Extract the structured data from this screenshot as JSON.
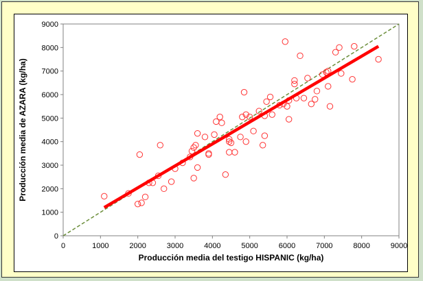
{
  "chart_data": {
    "type": "scatter",
    "xlabel": "Producción media del testigo HISPANIC (kg/ha)",
    "ylabel": "Producción media de AZARA (kg/ha)",
    "xlim": [
      0,
      9000
    ],
    "ylim": [
      0,
      9000
    ],
    "x_ticks": [
      "0",
      "1000",
      "2000",
      "3000",
      "4000",
      "5000",
      "6000",
      "7000",
      "8000",
      "9000"
    ],
    "y_ticks": [
      "0",
      "1000",
      "2000",
      "3000",
      "4000",
      "5000",
      "6000",
      "7000",
      "8000",
      "9000"
    ],
    "grid": false,
    "legend": "none",
    "colors": {
      "points": "#ff3333",
      "regression": "#ff0000",
      "identity": "#6b8e3a"
    },
    "points": [
      [
        1100,
        1680
      ],
      [
        1750,
        1800
      ],
      [
        2000,
        1350
      ],
      [
        2100,
        1400
      ],
      [
        2200,
        1650
      ],
      [
        2050,
        3450
      ],
      [
        2300,
        2250
      ],
      [
        2400,
        2250
      ],
      [
        2550,
        2550
      ],
      [
        2600,
        3850
      ],
      [
        2700,
        2000
      ],
      [
        2900,
        2300
      ],
      [
        3000,
        2850
      ],
      [
        3200,
        3100
      ],
      [
        3400,
        3350
      ],
      [
        3450,
        3600
      ],
      [
        3500,
        2450
      ],
      [
        3500,
        3750
      ],
      [
        3550,
        3850
      ],
      [
        3600,
        2900
      ],
      [
        3600,
        4350
      ],
      [
        3800,
        4200
      ],
      [
        3900,
        3450
      ],
      [
        3900,
        3500
      ],
      [
        4050,
        4300
      ],
      [
        4100,
        4850
      ],
      [
        4200,
        5050
      ],
      [
        4250,
        4800
      ],
      [
        4350,
        2600
      ],
      [
        4450,
        3550
      ],
      [
        4450,
        4000
      ],
      [
        4450,
        4100
      ],
      [
        4500,
        3950
      ],
      [
        4600,
        3550
      ],
      [
        4750,
        4200
      ],
      [
        4800,
        5050
      ],
      [
        4850,
        6100
      ],
      [
        4900,
        4000
      ],
      [
        4900,
        5150
      ],
      [
        5000,
        5050
      ],
      [
        5100,
        4450
      ],
      [
        5250,
        5300
      ],
      [
        5350,
        3850
      ],
      [
        5400,
        4250
      ],
      [
        5400,
        5100
      ],
      [
        5450,
        5700
      ],
      [
        5550,
        5900
      ],
      [
        5600,
        5150
      ],
      [
        5800,
        5550
      ],
      [
        5900,
        5600
      ],
      [
        5950,
        8250
      ],
      [
        6000,
        5500
      ],
      [
        6050,
        4950
      ],
      [
        6050,
        5750
      ],
      [
        6200,
        6450
      ],
      [
        6200,
        6600
      ],
      [
        6250,
        5850
      ],
      [
        6350,
        7650
      ],
      [
        6450,
        5850
      ],
      [
        6550,
        6700
      ],
      [
        6650,
        5600
      ],
      [
        6750,
        5800
      ],
      [
        6800,
        6150
      ],
      [
        6950,
        6850
      ],
      [
        7050,
        6950
      ],
      [
        7100,
        7000
      ],
      [
        7100,
        6350
      ],
      [
        7150,
        5500
      ],
      [
        7300,
        7800
      ],
      [
        7400,
        8000
      ],
      [
        7450,
        6900
      ],
      [
        7750,
        6650
      ],
      [
        7800,
        8050
      ],
      [
        8450,
        7500
      ]
    ],
    "regression_line": {
      "x": [
        1100,
        8450
      ],
      "y": [
        1200,
        8050
      ]
    },
    "identity_line": {
      "x": [
        0,
        9000
      ],
      "y": [
        0,
        9000
      ]
    }
  }
}
